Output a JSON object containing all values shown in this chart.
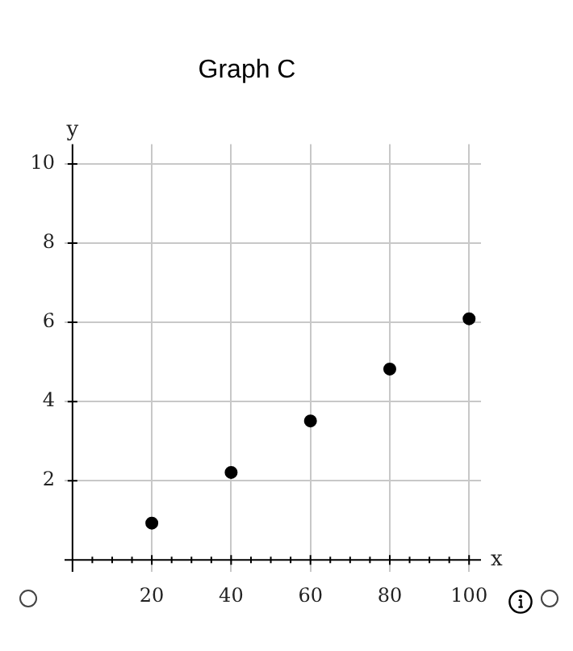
{
  "chart_data": {
    "type": "scatter",
    "title": "Graph C",
    "xlabel": "x",
    "ylabel": "y",
    "x": [
      20,
      40,
      60,
      80,
      100
    ],
    "series": [
      {
        "color": "#000000",
        "values": [
          0.93,
          2.21,
          3.51,
          4.82,
          6.09
        ]
      }
    ],
    "xlim": [
      -2,
      103
    ],
    "ylim": [
      -0.3,
      10.5
    ],
    "xticks": [
      {
        "value": 5,
        "label": null
      },
      {
        "value": 10,
        "label": null
      },
      {
        "value": 15,
        "label": null
      },
      20,
      {
        "value": 25,
        "label": null
      },
      {
        "value": 30,
        "label": null
      },
      {
        "value": 35,
        "label": null
      },
      40,
      {
        "value": 45,
        "label": null
      },
      {
        "value": 50,
        "label": null
      },
      {
        "value": 55,
        "label": null
      },
      60,
      {
        "value": 65,
        "label": null
      },
      {
        "value": 70,
        "label": null
      },
      {
        "value": 75,
        "label": null
      },
      80,
      {
        "value": 85,
        "label": null
      },
      {
        "value": 90,
        "label": null
      },
      {
        "value": 95,
        "label": null
      },
      100
    ],
    "yticks": [
      2,
      4,
      6,
      8,
      10
    ],
    "grid": true,
    "legend": false,
    "marker": "circle"
  }
}
